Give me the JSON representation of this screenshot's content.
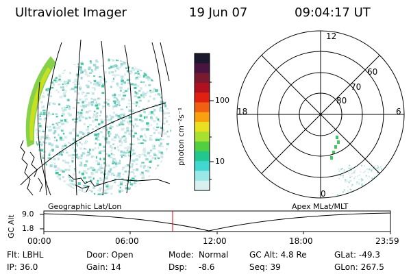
{
  "header": {
    "instrument": "Ultraviolet Imager",
    "date": "19 Jun 07",
    "time": "09:04:17 UT"
  },
  "colorbar": {
    "unit_label": "photon cm⁻²s⁻¹",
    "ticks": [
      "100",
      "10"
    ],
    "colors": [
      "#1a1a2e",
      "#4a1440",
      "#7a1a30",
      "#b01020",
      "#e02010",
      "#f06010",
      "#f8a010",
      "#e8e020",
      "#a8e030",
      "#50d040",
      "#20c890",
      "#40d8d0",
      "#9ae8e8",
      "#d8f0f0"
    ]
  },
  "polar": {
    "mlat_labels": [
      "60",
      "70",
      "80"
    ],
    "mlt_labels": {
      "top": "12",
      "left": "18",
      "right": "6",
      "bottom": "0"
    }
  },
  "strip": {
    "left_label": "Geographic Lat/Lon",
    "right_label": "Apex MLat/MLT",
    "y_axis_label": "GC Alt",
    "y_ticks": [
      "9.0",
      "1.8"
    ],
    "x_ticks": [
      "00:00",
      "06:00",
      "12:00",
      "18:00",
      "23:59"
    ],
    "cursor_color": "#e00000"
  },
  "info": {
    "flt": "Flt: LBHL",
    "ip": "IP: 36.0",
    "door": "Door: Open",
    "gain": "Gain: 14",
    "mode_label": "Mode:",
    "mode_value": "Normal",
    "dsp_label": "Dsp:",
    "dsp_value": "-8.6",
    "gc_alt": "GC Alt: 4.8 Re",
    "seq": "Seq: 39",
    "glat": "GLat: -49.3",
    "glon": "GLon: 267.5"
  }
}
